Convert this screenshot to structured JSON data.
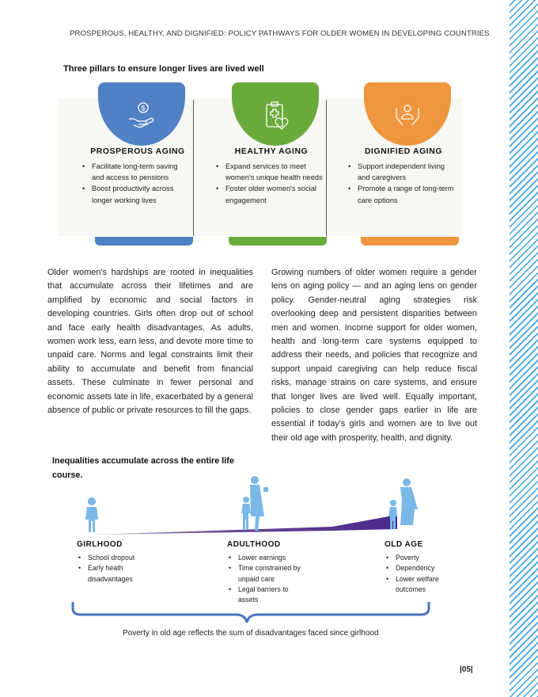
{
  "header": {
    "running_title": "PROSPEROUS, HEALTHY, AND DIGNIFIED:  POLICY PATHWAYS FOR OLDER WOMEN IN DEVELOPING COUNTRIES"
  },
  "pillars_figure": {
    "title": "Three pillars to ensure longer lives are lived well",
    "pillars": [
      {
        "heading": "PROSPEROUS AGING",
        "color": "#4f81c4",
        "icon": "hand-dollar-coin-icon",
        "bullets": [
          "Facilitate long-term saving and access to pensions",
          "Boost productivity across longer working lives"
        ]
      },
      {
        "heading": "HEALTHY AGING",
        "color": "#6aaa3a",
        "icon": "medical-clipboard-heart-icon",
        "bullets": [
          "Expand services to meet women's unique health needs",
          "Foster older women's social engagement"
        ]
      },
      {
        "heading": "DIGNIFIED AGING",
        "color": "#f0963e",
        "icon": "hands-holding-person-icon",
        "bullets": [
          "Support independent living and caregivers",
          "Promote a range of long-term care options"
        ]
      }
    ]
  },
  "body": {
    "left": "Older women's hardships are rooted in inequalities that accumulate across their lifetimes and are amplified by economic and social factors in developing countries. Girls often drop out of school and face early health disadvantages. As adults, women work less, earn less, and devote more time to unpaid care. Norms and legal constraints limit their ability to accumulate and benefit from financial assets. These culminate in fewer personal and economic assets late in life, exacerbated by a general absence of public or private resources to fill the gaps.",
    "right": "Growing numbers of older women require a gender lens on aging policy — and an aging lens on gender policy. Gender-neutral aging strategies risk overlooking deep and persistent disparities between men and women. Income support for older women, health and long-term care systems equipped to address their needs, and policies that recognize and support unpaid caregiving can help reduce fiscal risks, manage strains on care systems, and ensure that longer lives are lived well. Equally important, policies to close gender gaps earlier in life are essential if today's girls and women are to live out their old age with prosperity, health, and dignity."
  },
  "lifecourse_figure": {
    "title": "Inequalities accumulate across the entire life course.",
    "figure_color": "#7ab8e8",
    "wedge_colors": [
      "#9aa4b0",
      "#4a2a8a"
    ],
    "stages": [
      {
        "heading": "GIRLHOOD",
        "bullets": [
          "School dropout",
          "Early heath disadvantages"
        ]
      },
      {
        "heading": "ADULTHOOD",
        "bullets": [
          "Lower earnings",
          "Time constrained by unpaid care",
          "Legal barriers to assets"
        ]
      },
      {
        "heading": "OLD AGE",
        "bullets": [
          "Poverty",
          "Dependency",
          "Lower welfare outcomes"
        ]
      }
    ],
    "summary": "Poverty in old age reflects the sum of disadvantages faced since girlhood"
  },
  "page_number": "|05|"
}
